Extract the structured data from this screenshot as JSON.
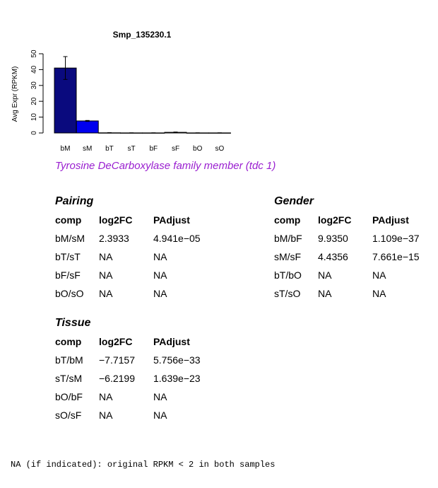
{
  "chart_data": {
    "type": "bar",
    "title": "Smp_135230.1",
    "ylabel": "Avg Expr (RPKM)",
    "xlabel": "",
    "ylim": [
      0,
      50
    ],
    "yticks": [
      0,
      10,
      20,
      30,
      40,
      50
    ],
    "categories": [
      "bM",
      "sM",
      "bT",
      "sT",
      "bF",
      "sF",
      "bO",
      "sO"
    ],
    "values": [
      41.0,
      7.6,
      0.1,
      0.05,
      0.05,
      0.4,
      0.05,
      0.05
    ],
    "error": [
      7.2,
      0.3,
      0.1,
      0.05,
      0.05,
      0.2,
      0.05,
      0.05
    ],
    "colors": [
      "#0a0a7e",
      "#0000ee",
      "#0a0a7e",
      "#0000ee",
      "#0a0a7e",
      "#0000ee",
      "#0a0a7e",
      "#0000ee"
    ]
  },
  "gene_description": "Tyrosine DeCarboxylase family member (tdc 1)",
  "stats": {
    "pairing": {
      "title": "Pairing",
      "headers": [
        "comp",
        "log2FC",
        "PAdjust"
      ],
      "rows": [
        [
          "bM/sM",
          "2.3933",
          "4.941e−05"
        ],
        [
          "bT/sT",
          "NA",
          "NA"
        ],
        [
          "bF/sF",
          "NA",
          "NA"
        ],
        [
          "bO/sO",
          "NA",
          "NA"
        ]
      ]
    },
    "gender": {
      "title": "Gender",
      "headers": [
        "comp",
        "log2FC",
        "PAdjust"
      ],
      "rows": [
        [
          "bM/bF",
          "9.9350",
          "1.109e−37"
        ],
        [
          "sM/sF",
          "4.4356",
          "7.661e−15"
        ],
        [
          "bT/bO",
          "NA",
          "NA"
        ],
        [
          "sT/sO",
          "NA",
          "NA"
        ]
      ]
    },
    "tissue": {
      "title": "Tissue",
      "headers": [
        "comp",
        "log2FC",
        "PAdjust"
      ],
      "rows": [
        [
          "bT/bM",
          "−7.7157",
          "5.756e−33"
        ],
        [
          "sT/sM",
          "−6.2199",
          "1.639e−23"
        ],
        [
          "bO/bF",
          "NA",
          "NA"
        ],
        [
          "sO/sF",
          "NA",
          "NA"
        ]
      ]
    }
  },
  "footnote": "NA (if indicated): original RPKM < 2 in both samples"
}
